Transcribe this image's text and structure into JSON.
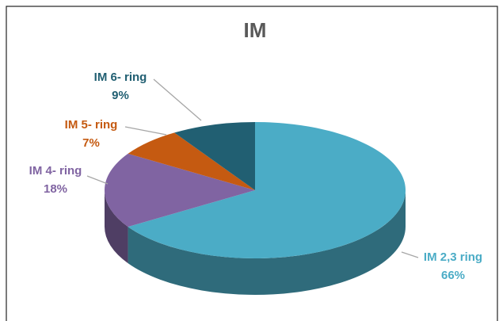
{
  "chart_data": {
    "type": "pie",
    "title": "IM",
    "categories": [
      "IM 2,3 ring",
      "IM 4- ring",
      "IM 5- ring",
      "IM 6- ring"
    ],
    "values": [
      66,
      18,
      7,
      9
    ],
    "value_labels": [
      "66%",
      "18%",
      "7%",
      "9%"
    ],
    "colors": [
      "#4bacc6",
      "#8064a2",
      "#c55a11",
      "#215f72"
    ]
  }
}
